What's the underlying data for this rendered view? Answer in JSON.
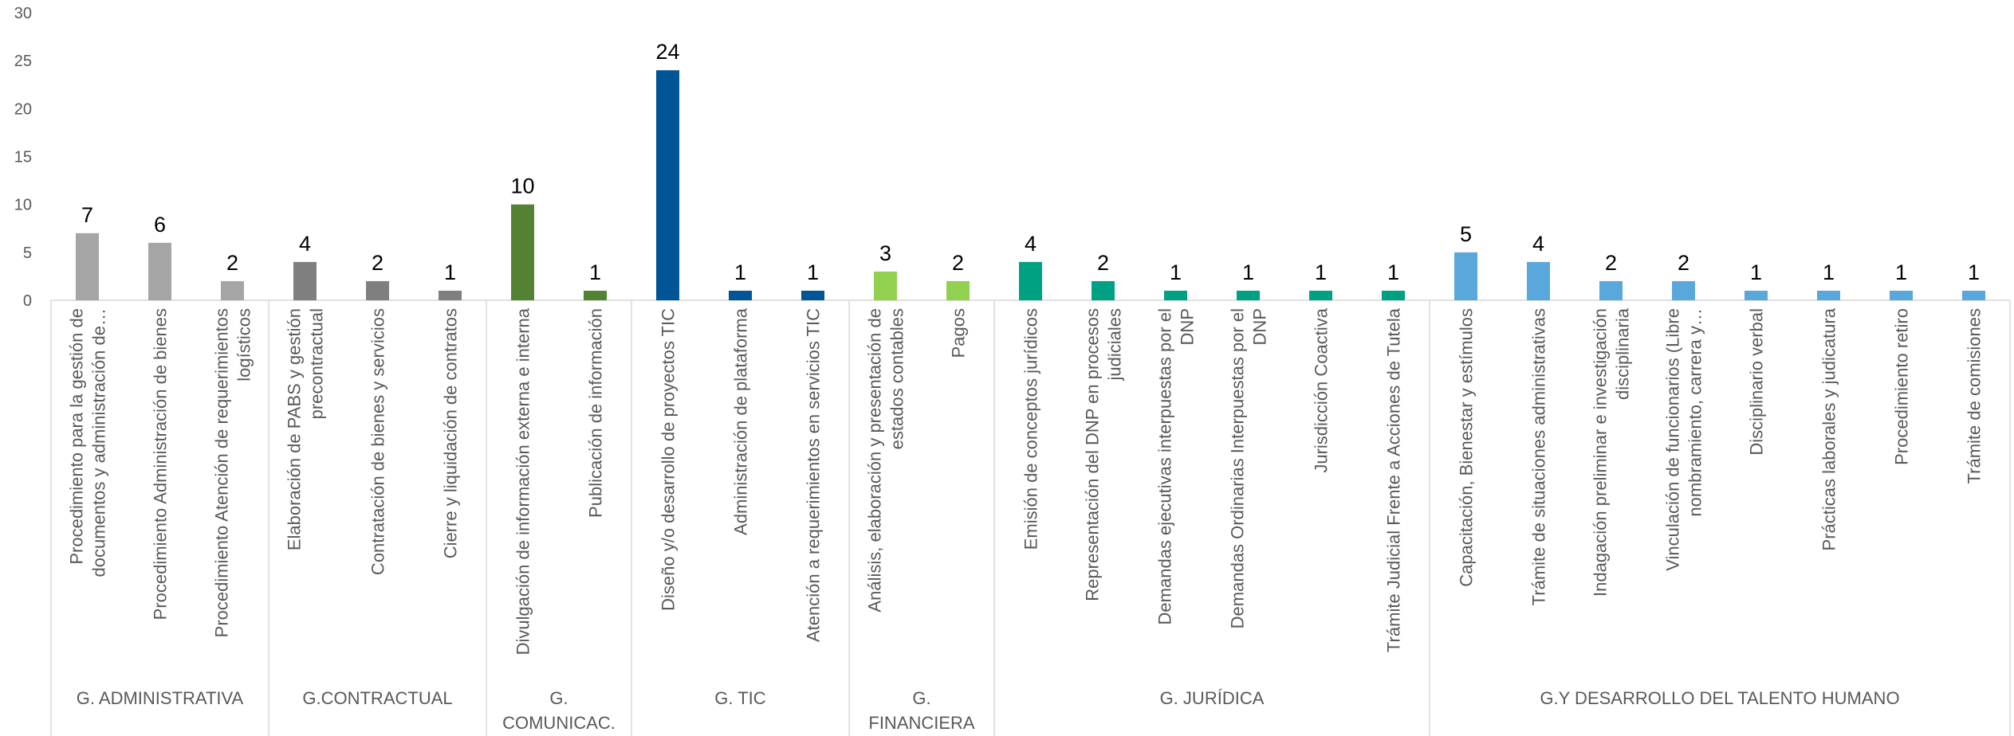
{
  "chart_data": {
    "type": "bar",
    "ylim": [
      0,
      30
    ],
    "yticks": [
      0,
      5,
      10,
      15,
      20,
      25,
      30
    ],
    "groups": [
      {
        "name": "G. ADMINISTRATIVA",
        "color": "#a5a5a5",
        "categories": [
          "Procedimiento para la gestión de documentos y administración de…",
          "Procedimiento Administración de bienes",
          "Procedimiento Atención de requerimientos logísticos"
        ],
        "values": [
          7,
          6,
          2
        ]
      },
      {
        "name": "G.CONTRACTUAL",
        "color": "#7f7f7f",
        "categories": [
          "Elaboración de PABS y gestión precontractual",
          "Contratación de bienes y servicios",
          "Cierre y liquidación de contratos"
        ],
        "values": [
          4,
          2,
          1
        ]
      },
      {
        "name": "G. COMUNICAC.",
        "color": "#548235",
        "categories": [
          "Divulgación de información externa e interna",
          "Publicación de información"
        ],
        "values": [
          10,
          1
        ]
      },
      {
        "name": "G. TIC",
        "color": "#005596",
        "categories": [
          "Diseño y/o desarrollo de proyectos TIC",
          "Administración de plataforma",
          "Atención a requerimientos en servicios TIC"
        ],
        "values": [
          24,
          1,
          1
        ]
      },
      {
        "name": "G. FINANCIERA",
        "color": "#92d050",
        "categories": [
          "Análisis, elaboración y presentación de estados contables",
          "Pagos"
        ],
        "values": [
          3,
          2
        ]
      },
      {
        "name": "G. JURÍDICA",
        "color": "#00a082",
        "categories": [
          "Emisión de conceptos jurídicos",
          "Representación del DNP en procesos judiciales",
          "Demandas ejecutivas interpuestas por el DNP",
          "Demandas Ordinarias Interpuestas por el DNP",
          "Jurisdicción Coactiva",
          "Trámite Judicial Frente a Acciones de Tutela"
        ],
        "values": [
          4,
          2,
          1,
          1,
          1,
          1
        ]
      },
      {
        "name": "G.Y DESARROLLO DEL TALENTO HUMANO",
        "color": "#5aa7dc",
        "categories": [
          "Capacitación, Bienestar y estímulos",
          "Trámite de situaciones administrativas",
          "Indagación preliminar e investigación disciplinaria",
          "Vinculación de funcionarios (Libre nombramiento, carrera y…",
          "Disciplinario verbal",
          "Prácticas laborales y judicatura",
          "Procedimiento retiro",
          "Trámite de comisiones"
        ],
        "values": [
          5,
          4,
          2,
          2,
          1,
          1,
          1,
          1
        ]
      }
    ]
  }
}
